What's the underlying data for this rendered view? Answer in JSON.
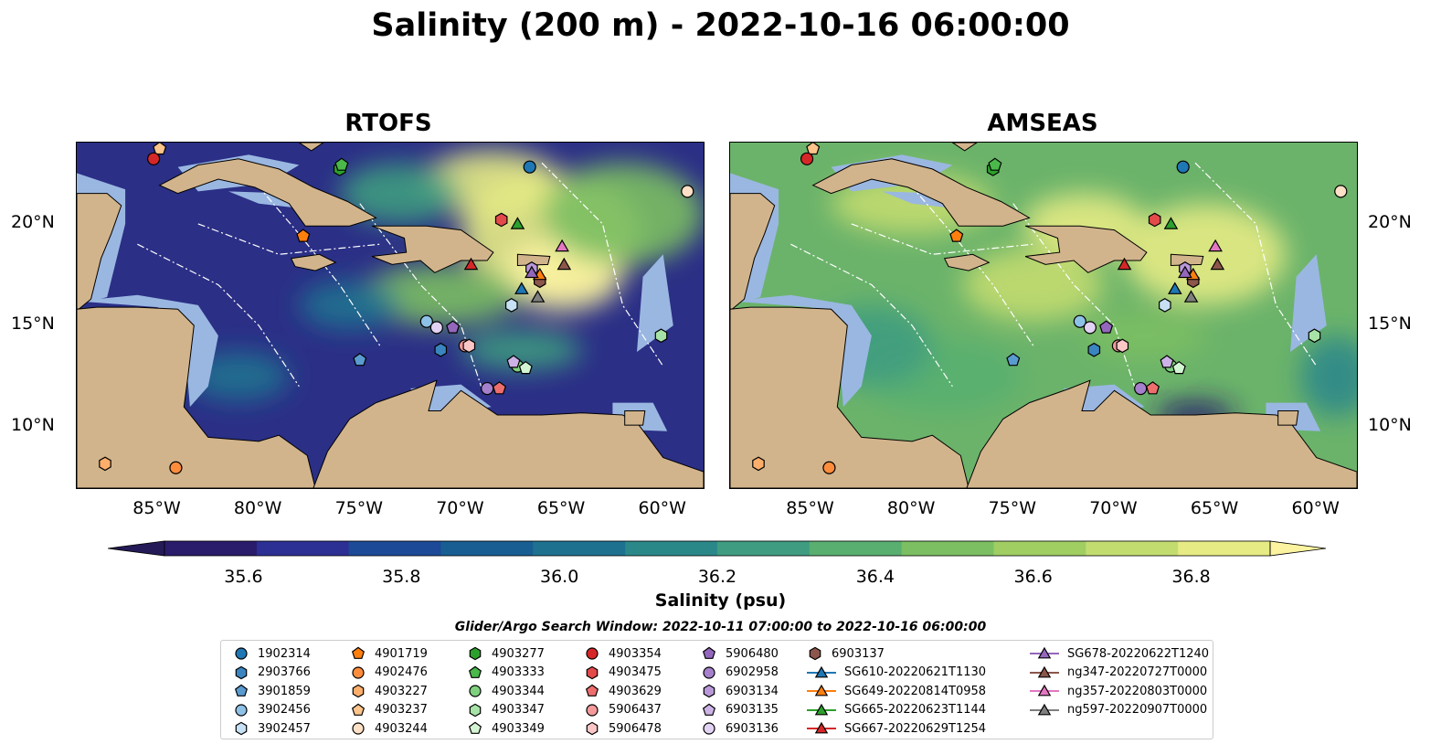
{
  "title": "Salinity (200 m) - 2022-10-16 06:00:00",
  "panels": [
    {
      "title": "RTOFS",
      "field": "rtofs"
    },
    {
      "title": "AMSEAS",
      "field": "amseas"
    }
  ],
  "map_extent": {
    "lon": [
      -89,
      -58
    ],
    "lat": [
      7,
      24
    ]
  },
  "lon_ticks": [
    "85°W",
    "80°W",
    "75°W",
    "70°W",
    "65°W",
    "60°W"
  ],
  "lat_ticks": [
    "20°N",
    "15°N",
    "10°N"
  ],
  "colorbar": {
    "label": "Salinity (psu)",
    "ticks": [
      "35.6",
      "35.8",
      "36.0",
      "36.2",
      "36.4",
      "36.6",
      "36.8"
    ],
    "range": [
      35.5,
      36.9
    ],
    "colors": [
      "#2a1c6a",
      "#2c2f93",
      "#1c4a96",
      "#185e93",
      "#1e7290",
      "#2b8889",
      "#3f9c80",
      "#58af70",
      "#7bbf62",
      "#a0ce63",
      "#c3dc70",
      "#e6eb84"
    ]
  },
  "colors": {
    "land": "#d2b48c",
    "shelf": "#9ab7e1",
    "rtofs_background": "#2b2f86",
    "amseas_background": "#6bb36a"
  },
  "legend": {
    "title": "Glider/Argo Search Window: 2022-10-11 07:00:00 to 2022-10-16 06:00:00",
    "items": [
      {
        "label": "1902314",
        "marker": "circle",
        "color": "#1f77b4"
      },
      {
        "label": "2903766",
        "marker": "hexagon",
        "color": "#3a85bf"
      },
      {
        "label": "3901859",
        "marker": "pentagon",
        "color": "#5a9bd0"
      },
      {
        "label": "3902456",
        "marker": "circle",
        "color": "#8ec1e6"
      },
      {
        "label": "3902457",
        "marker": "hexagon",
        "color": "#c6e0f4"
      },
      {
        "label": "4901719",
        "marker": "pentagon",
        "color": "#ff7f0e"
      },
      {
        "label": "4902476",
        "marker": "circle",
        "color": "#fd8d3c"
      },
      {
        "label": "4903227",
        "marker": "hexagon",
        "color": "#fdae6b"
      },
      {
        "label": "4903237",
        "marker": "pentagon",
        "color": "#fdc48b"
      },
      {
        "label": "4903244",
        "marker": "circle",
        "color": "#fde0c5"
      },
      {
        "label": "4903277",
        "marker": "hexagon",
        "color": "#2ca02c"
      },
      {
        "label": "4903333",
        "marker": "pentagon",
        "color": "#4ab84a"
      },
      {
        "label": "4903344",
        "marker": "circle",
        "color": "#7fd17f"
      },
      {
        "label": "4903347",
        "marker": "hexagon",
        "color": "#a7e3a7"
      },
      {
        "label": "4903349",
        "marker": "pentagon",
        "color": "#d4f5d4"
      },
      {
        "label": "4903354",
        "marker": "circle",
        "color": "#d62728"
      },
      {
        "label": "4903475",
        "marker": "hexagon",
        "color": "#e34a4a"
      },
      {
        "label": "4903629",
        "marker": "pentagon",
        "color": "#ee6e6e"
      },
      {
        "label": "5906437",
        "marker": "circle",
        "color": "#f59a9a"
      },
      {
        "label": "5906478",
        "marker": "hexagon",
        "color": "#fac6c6"
      },
      {
        "label": "5906480",
        "marker": "pentagon",
        "color": "#9467bd"
      },
      {
        "label": "6902958",
        "marker": "circle",
        "color": "#a680cc"
      },
      {
        "label": "6903134",
        "marker": "hexagon",
        "color": "#b998da"
      },
      {
        "label": "6903135",
        "marker": "pentagon",
        "color": "#ccb2e6"
      },
      {
        "label": "6903136",
        "marker": "circle",
        "color": "#e2d2f3"
      },
      {
        "label": "6903137",
        "marker": "hexagon",
        "color": "#8c564b"
      },
      {
        "label": "SG610-20220621T1130",
        "marker": "triangle-line",
        "color": "#1f77b4"
      },
      {
        "label": "SG649-20220814T0958",
        "marker": "triangle-line",
        "color": "#ff7f0e"
      },
      {
        "label": "SG665-20220623T1144",
        "marker": "triangle-line",
        "color": "#2ca02c"
      },
      {
        "label": "SG667-20220629T1254",
        "marker": "triangle-line",
        "color": "#d62728"
      },
      {
        "label": "SG678-20220622T1240",
        "marker": "triangle-line",
        "color": "#9467bd"
      },
      {
        "label": "ng347-20220727T0000",
        "marker": "triangle-line",
        "color": "#8c564b"
      },
      {
        "label": "ng357-20220803T0000",
        "marker": "triangle-line",
        "color": "#e377c2"
      },
      {
        "label": "ng597-20220907T0000",
        "marker": "triangle-line",
        "color": "#7f7f7f"
      }
    ]
  },
  "map_markers": [
    {
      "id": "1902314",
      "lon": -66.6,
      "lat": 22.8
    },
    {
      "id": "2903766",
      "lon": -71.0,
      "lat": 13.8
    },
    {
      "id": "3901859",
      "lon": -75.0,
      "lat": 13.3
    },
    {
      "id": "3902456",
      "lon": -71.7,
      "lat": 15.2
    },
    {
      "id": "3902457",
      "lon": -67.5,
      "lat": 16.0
    },
    {
      "id": "4901719",
      "lon": -77.8,
      "lat": 19.4
    },
    {
      "id": "4902476",
      "lon": -84.1,
      "lat": 8.0
    },
    {
      "id": "4903227",
      "lon": -87.6,
      "lat": 8.2
    },
    {
      "id": "4903237",
      "lon": -84.9,
      "lat": 23.7
    },
    {
      "id": "4903244",
      "lon": -58.8,
      "lat": 21.6
    },
    {
      "id": "4903277",
      "lon": -76.0,
      "lat": 22.7
    },
    {
      "id": "4903333",
      "lon": -75.9,
      "lat": 22.9
    },
    {
      "id": "4903344",
      "lon": -67.2,
      "lat": 13.0
    },
    {
      "id": "4903347",
      "lon": -60.1,
      "lat": 14.5
    },
    {
      "id": "4903349",
      "lon": -66.8,
      "lat": 12.9
    },
    {
      "id": "4903354",
      "lon": -85.2,
      "lat": 23.2
    },
    {
      "id": "4903475",
      "lon": -68.0,
      "lat": 20.2
    },
    {
      "id": "4903629",
      "lon": -68.1,
      "lat": 11.9
    },
    {
      "id": "5906437",
      "lon": -69.8,
      "lat": 14.0
    },
    {
      "id": "5906478",
      "lon": -69.6,
      "lat": 14.0
    },
    {
      "id": "5906480",
      "lon": -70.4,
      "lat": 14.9
    },
    {
      "id": "6902958",
      "lon": -68.7,
      "lat": 11.9
    },
    {
      "id": "6903134",
      "lon": -66.5,
      "lat": 17.8
    },
    {
      "id": "6903135",
      "lon": -67.4,
      "lat": 13.2
    },
    {
      "id": "6903136",
      "lon": -71.2,
      "lat": 14.9
    },
    {
      "id": "6903137",
      "lon": -66.1,
      "lat": 17.2
    },
    {
      "id": "SG610-20220621T1130",
      "lon": -67.0,
      "lat": 16.8
    },
    {
      "id": "SG649-20220814T0958",
      "lon": -66.1,
      "lat": 17.5
    },
    {
      "id": "SG665-20220623T1144",
      "lon": -67.2,
      "lat": 20.0
    },
    {
      "id": "SG667-20220629T1254",
      "lon": -69.5,
      "lat": 18.0
    },
    {
      "id": "SG678-20220622T1240",
      "lon": -66.5,
      "lat": 17.6
    },
    {
      "id": "ng347-20220727T0000",
      "lon": -64.9,
      "lat": 18.0
    },
    {
      "id": "ng357-20220803T0000",
      "lon": -65.0,
      "lat": 18.9
    },
    {
      "id": "ng597-20220907T0000",
      "lon": -66.2,
      "lat": 16.4
    }
  ],
  "salinity_blobs": {
    "rtofs": [
      {
        "lon": -65.5,
        "lat": 19.5,
        "rx": 4.5,
        "ry": 3.0,
        "value": 36.85
      },
      {
        "lon": -68.5,
        "lat": 22.0,
        "rx": 3.5,
        "ry": 1.6,
        "value": 36.8
      },
      {
        "lon": -65.0,
        "lat": 17.5,
        "rx": 3.0,
        "ry": 1.8,
        "value": 36.9
      },
      {
        "lon": -71.0,
        "lat": 16.5,
        "rx": 4.0,
        "ry": 1.5,
        "value": 36.45
      },
      {
        "lon": -62.0,
        "lat": 20.5,
        "rx": 4.0,
        "ry": 2.5,
        "value": 36.55
      },
      {
        "lon": -73.0,
        "lat": 21.5,
        "rx": 3.0,
        "ry": 1.5,
        "value": 36.3
      },
      {
        "lon": -75.5,
        "lat": 16.0,
        "rx": 2.5,
        "ry": 1.2,
        "value": 36.05
      },
      {
        "lon": -81.0,
        "lat": 12.5,
        "rx": 2.5,
        "ry": 1.2,
        "value": 36.0
      },
      {
        "lon": -67.0,
        "lat": 13.8,
        "rx": 3.0,
        "ry": 1.0,
        "value": 36.2
      }
    ],
    "amseas": [
      {
        "lon": -65.5,
        "lat": 18.5,
        "rx": 4.0,
        "ry": 2.5,
        "value": 36.85
      },
      {
        "lon": -71.5,
        "lat": 20.0,
        "rx": 3.0,
        "ry": 1.5,
        "value": 36.8
      },
      {
        "lon": -74.0,
        "lat": 17.0,
        "rx": 3.5,
        "ry": 1.8,
        "value": 36.7
      },
      {
        "lon": -80.0,
        "lat": 21.0,
        "rx": 4.0,
        "ry": 1.5,
        "value": 36.7
      },
      {
        "lon": -78.5,
        "lat": 12.5,
        "rx": 4.0,
        "ry": 1.8,
        "value": 36.35
      },
      {
        "lon": -82.0,
        "lat": 14.0,
        "rx": 3.0,
        "ry": 2.0,
        "value": 36.3
      },
      {
        "lon": -66.0,
        "lat": 10.6,
        "rx": 2.0,
        "ry": 0.7,
        "value": 35.6
      },
      {
        "lon": -59.0,
        "lat": 12.5,
        "rx": 1.8,
        "ry": 2.0,
        "value": 36.1
      },
      {
        "lon": -68.5,
        "lat": 14.5,
        "rx": 3.0,
        "ry": 1.2,
        "value": 36.45
      }
    ]
  }
}
